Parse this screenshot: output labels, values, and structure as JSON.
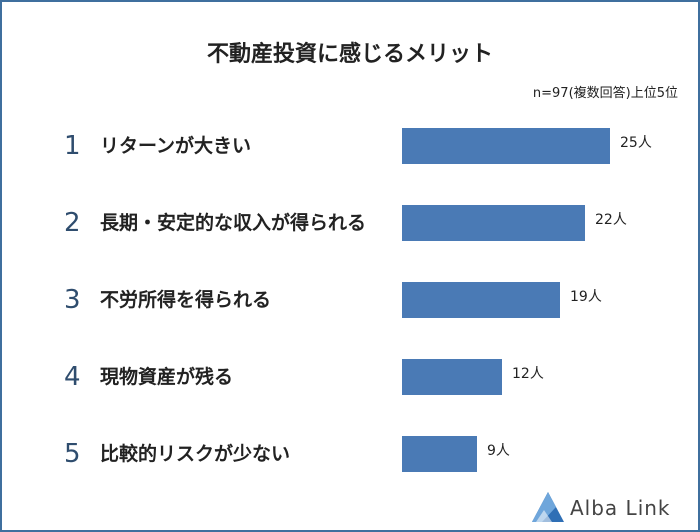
{
  "header": {
    "title": "不動産投資に感じるメリット",
    "note": "n=97(複数回答)上位5位"
  },
  "chart_data": {
    "type": "bar",
    "orientation": "horizontal",
    "categories": [
      "リターンが大きい",
      "長期・安定的な収入が得られる",
      "不労所得を得られる",
      "現物資産が残る",
      "比較的リスクが少ない"
    ],
    "ranks": [
      "1",
      "2",
      "3",
      "4",
      "5"
    ],
    "values": [
      25,
      22,
      19,
      12,
      9
    ],
    "value_labels": [
      "25人",
      "22人",
      "19人",
      "12人",
      "9人"
    ],
    "bar_color": "#4a7ab5",
    "xlim": [
      0,
      25
    ]
  },
  "logo": {
    "text": "Alba Link"
  },
  "colors": {
    "border": "#3f6f9e",
    "rank": "#2f4d6e"
  }
}
